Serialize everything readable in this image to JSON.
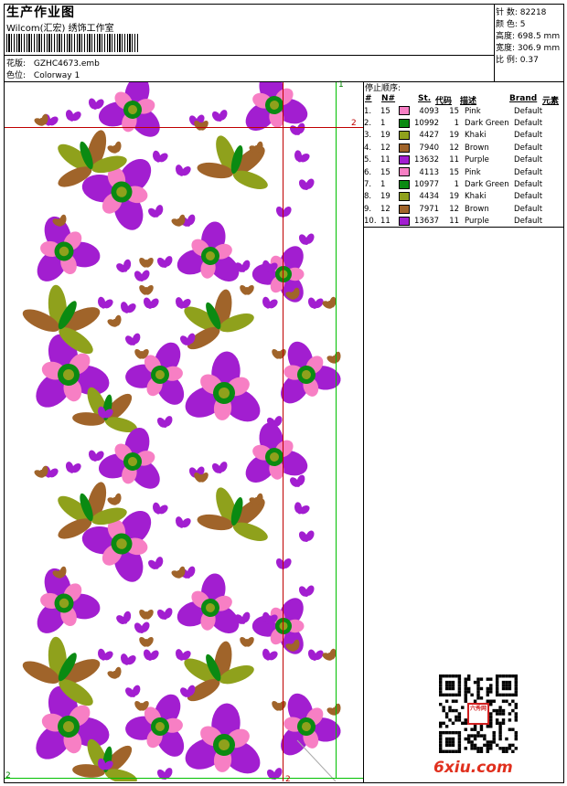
{
  "header": {
    "title": "生产作业图",
    "subtitle": "Wilcom(汇宏) 绣饰工作室",
    "design_label": "花版:",
    "design_file": "GZHC4673.emb",
    "color_label": "色位:",
    "colorway": "Colorway 1"
  },
  "info": [
    {
      "label": "针 数:",
      "value": "82218"
    },
    {
      "label": "颜 色:",
      "value": "5"
    },
    {
      "label": "高度:",
      "value": "698.5 mm"
    },
    {
      "label": "宽度:",
      "value": "306.9 mm"
    },
    {
      "label": "比 例:",
      "value": "0.37"
    }
  ],
  "stops": {
    "title": "停止顺序:",
    "headers": {
      "hash": "#",
      "no": "N#",
      "st": "St.",
      "code": "代码",
      "desc": "描述",
      "brand": "Brand",
      "elem": "元素"
    },
    "rows": [
      {
        "idx": "1.",
        "n": "15",
        "color": "#f77fc4",
        "st": "4093",
        "code": "15",
        "desc": "Pink",
        "brand": "Default"
      },
      {
        "idx": "2.",
        "n": "1",
        "color": "#0a8a12",
        "st": "10992",
        "code": "1",
        "desc": "Dark Green",
        "brand": "Default"
      },
      {
        "idx": "3.",
        "n": "19",
        "color": "#8fa11c",
        "st": "4427",
        "code": "19",
        "desc": "Khaki",
        "brand": "Default"
      },
      {
        "idx": "4.",
        "n": "12",
        "color": "#a0642a",
        "st": "7940",
        "code": "12",
        "desc": "Brown",
        "brand": "Default"
      },
      {
        "idx": "5.",
        "n": "11",
        "color": "#a21ed0",
        "st": "13632",
        "code": "11",
        "desc": "Purple",
        "brand": "Default"
      },
      {
        "idx": "6.",
        "n": "15",
        "color": "#f77fc4",
        "st": "4113",
        "code": "15",
        "desc": "Pink",
        "brand": "Default"
      },
      {
        "idx": "7.",
        "n": "1",
        "color": "#0a8a12",
        "st": "10977",
        "code": "1",
        "desc": "Dark Green",
        "brand": "Default"
      },
      {
        "idx": "8.",
        "n": "19",
        "color": "#8fa11c",
        "st": "4434",
        "code": "19",
        "desc": "Khaki",
        "brand": "Default"
      },
      {
        "idx": "9.",
        "n": "12",
        "color": "#a0642a",
        "st": "7971",
        "code": "12",
        "desc": "Brown",
        "brand": "Default"
      },
      {
        "idx": "10.",
        "n": "11",
        "color": "#a21ed0",
        "st": "13637",
        "code": "11",
        "desc": "Purple",
        "brand": "Default"
      }
    ]
  },
  "markers": {
    "g1": "1",
    "g2": "2",
    "r1": "2",
    "r2": "2"
  },
  "watermark": {
    "site": "6xiu.com",
    "seal": "六秀网"
  },
  "colors": {
    "purple": "#a21ed0",
    "pink": "#f77fc4",
    "green": "#0a8a12",
    "khaki": "#8fa11c",
    "brown": "#a0642a",
    "guide_green": "#00c000",
    "guide_red": "#c00000"
  }
}
